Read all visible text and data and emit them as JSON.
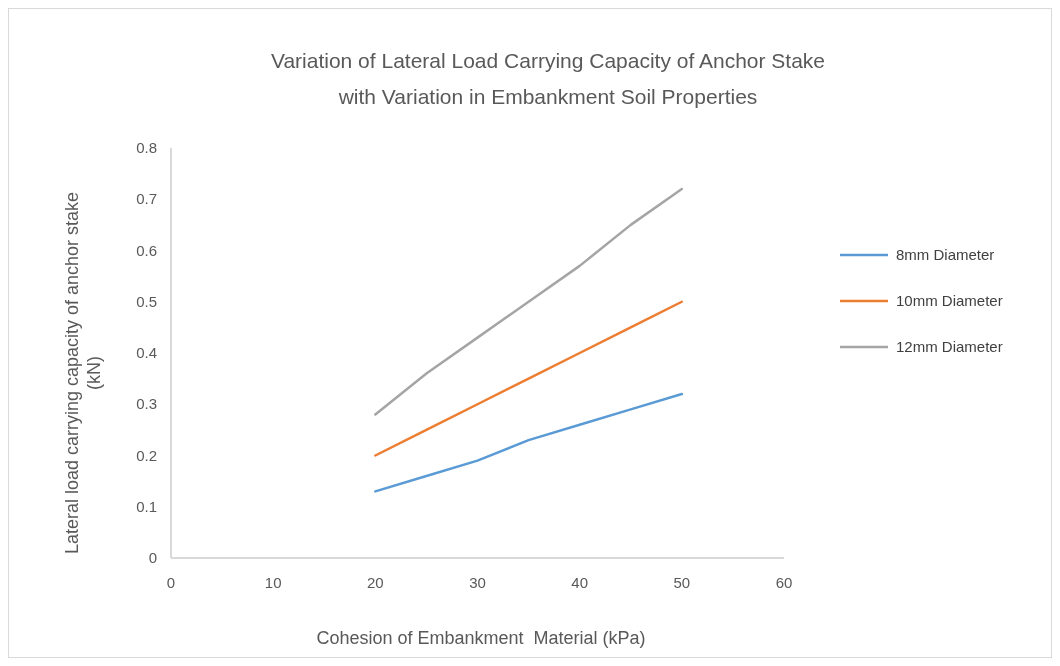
{
  "chart_data": {
    "type": "line",
    "title": "Variation of Lateral Load Carrying Capacity of Anchor Stake with Variation in Embankment Soil Properties",
    "xlabel": "Cohesion of Embankment  Material (kPa)",
    "ylabel": "Lateral load carrying capacity of anchor stake (kN)",
    "x": [
      20,
      25,
      30,
      35,
      40,
      45,
      50
    ],
    "series": [
      {
        "name": "8mm Diameter",
        "color": "#5b9bd5",
        "values": [
          0.13,
          0.16,
          0.19,
          0.23,
          0.26,
          0.29,
          0.32
        ]
      },
      {
        "name": "10mm Diameter",
        "color": "#ed7d31",
        "values": [
          0.2,
          0.25,
          0.3,
          0.35,
          0.4,
          0.45,
          0.5
        ]
      },
      {
        "name": "12mm Diameter",
        "color": "#a5a5a5",
        "values": [
          0.28,
          0.36,
          0.43,
          0.5,
          0.57,
          0.65,
          0.72
        ]
      }
    ],
    "xlim": [
      0,
      60
    ],
    "xticks": [
      0,
      10,
      20,
      30,
      40,
      50,
      60
    ],
    "ylim": [
      0,
      0.8
    ],
    "yticks": [
      0,
      0.1,
      0.2,
      0.3,
      0.4,
      0.5,
      0.6,
      0.7,
      0.8
    ],
    "grid": false,
    "legend": "right",
    "marker": "none",
    "line_style": "solid"
  }
}
